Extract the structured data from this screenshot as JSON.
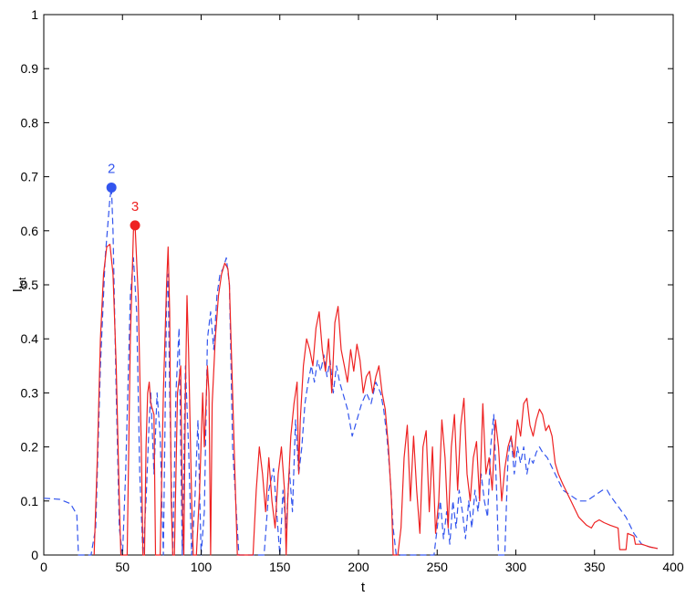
{
  "chart_data": {
    "type": "line",
    "xlabel": "t",
    "ylabel_main": "I",
    "ylabel_sub": "tot",
    "xlim": [
      0,
      400
    ],
    "ylim": [
      0,
      1
    ],
    "x_ticks": [
      0,
      50,
      100,
      150,
      200,
      250,
      300,
      350,
      400
    ],
    "y_ticks": [
      0,
      0.1,
      0.2,
      0.3,
      0.4,
      0.5,
      0.6,
      0.7,
      0.8,
      0.9,
      1
    ],
    "y_tick_labels": [
      "0",
      "0.1",
      "0.2",
      "0.3",
      "0.4",
      "0.5",
      "0.6",
      "0.7",
      "0.8",
      "0.9",
      "1"
    ],
    "grid": false,
    "series": [
      {
        "color": "#3355ee",
        "style": "dashed",
        "points": [
          [
            0,
            0.105
          ],
          [
            10,
            0.103
          ],
          [
            17,
            0.095
          ],
          [
            21,
            0.075
          ],
          [
            22,
            0
          ],
          [
            30,
            0
          ],
          [
            33,
            0.05
          ],
          [
            36,
            0.35
          ],
          [
            39,
            0.55
          ],
          [
            42,
            0.66
          ],
          [
            43,
            0.68
          ],
          [
            44,
            0.6
          ],
          [
            46,
            0.3
          ],
          [
            48,
            0.05
          ],
          [
            50,
            0
          ],
          [
            52,
            0.15
          ],
          [
            55,
            0.48
          ],
          [
            57,
            0.55
          ],
          [
            59,
            0.45
          ],
          [
            61,
            0.15
          ],
          [
            63,
            0
          ],
          [
            65,
            0.1
          ],
          [
            67,
            0.25
          ],
          [
            68,
            0.3
          ],
          [
            70,
            0.15
          ],
          [
            72,
            0.3
          ],
          [
            74,
            0.22
          ],
          [
            76,
            0
          ],
          [
            78,
            0.47
          ],
          [
            79,
            0.52
          ],
          [
            80,
            0.3
          ],
          [
            82,
            0
          ],
          [
            84,
            0.3
          ],
          [
            86,
            0.42
          ],
          [
            88,
            0
          ],
          [
            90,
            0.35
          ],
          [
            92,
            0.2
          ],
          [
            94,
            0
          ],
          [
            96,
            0.1
          ],
          [
            98,
            0.25
          ],
          [
            100,
            0
          ],
          [
            102,
            0.08
          ],
          [
            104,
            0.4
          ],
          [
            106,
            0.45
          ],
          [
            108,
            0.38
          ],
          [
            110,
            0.48
          ],
          [
            112,
            0.52
          ],
          [
            114,
            0.53
          ],
          [
            116,
            0.55
          ],
          [
            118,
            0.5
          ],
          [
            120,
            0.2
          ],
          [
            122,
            0.1
          ],
          [
            124,
            0
          ],
          [
            140,
            0
          ],
          [
            143,
            0.12
          ],
          [
            146,
            0.16
          ],
          [
            148,
            0.08
          ],
          [
            150,
            0
          ],
          [
            152,
            0.12
          ],
          [
            154,
            0.05
          ],
          [
            156,
            0.16
          ],
          [
            158,
            0.08
          ],
          [
            160,
            0.25
          ],
          [
            162,
            0.15
          ],
          [
            164,
            0.2
          ],
          [
            166,
            0.28
          ],
          [
            168,
            0.32
          ],
          [
            170,
            0.35
          ],
          [
            172,
            0.32
          ],
          [
            174,
            0.36
          ],
          [
            176,
            0.34
          ],
          [
            178,
            0.37
          ],
          [
            180,
            0.33
          ],
          [
            182,
            0.36
          ],
          [
            184,
            0.3
          ],
          [
            186,
            0.35
          ],
          [
            188,
            0.32
          ],
          [
            190,
            0.3
          ],
          [
            193,
            0.27
          ],
          [
            196,
            0.22
          ],
          [
            199,
            0.25
          ],
          [
            202,
            0.28
          ],
          [
            205,
            0.3
          ],
          [
            208,
            0.28
          ],
          [
            211,
            0.32
          ],
          [
            214,
            0.3
          ],
          [
            216,
            0.27
          ],
          [
            218,
            0.22
          ],
          [
            220,
            0.15
          ],
          [
            222,
            0.05
          ],
          [
            224,
            0
          ],
          [
            248,
            0
          ],
          [
            250,
            0.05
          ],
          [
            252,
            0.1
          ],
          [
            254,
            0.03
          ],
          [
            256,
            0.08
          ],
          [
            258,
            0.02
          ],
          [
            260,
            0.1
          ],
          [
            262,
            0.05
          ],
          [
            264,
            0.12
          ],
          [
            266,
            0.08
          ],
          [
            268,
            0.03
          ],
          [
            270,
            0.1
          ],
          [
            272,
            0.05
          ],
          [
            274,
            0.12
          ],
          [
            276,
            0.08
          ],
          [
            278,
            0.15
          ],
          [
            280,
            0.1
          ],
          [
            282,
            0.07
          ],
          [
            284,
            0.2
          ],
          [
            286,
            0.26
          ],
          [
            288,
            0.1
          ],
          [
            289,
            0
          ],
          [
            293,
            0
          ],
          [
            295,
            0.18
          ],
          [
            297,
            0.22
          ],
          [
            299,
            0.15
          ],
          [
            301,
            0.2
          ],
          [
            303,
            0.17
          ],
          [
            305,
            0.2
          ],
          [
            307,
            0.15
          ],
          [
            309,
            0.18
          ],
          [
            311,
            0.17
          ],
          [
            313,
            0.19
          ],
          [
            315,
            0.2
          ],
          [
            317,
            0.19
          ],
          [
            320,
            0.18
          ],
          [
            325,
            0.15
          ],
          [
            330,
            0.12
          ],
          [
            335,
            0.11
          ],
          [
            340,
            0.1
          ],
          [
            345,
            0.1
          ],
          [
            350,
            0.11
          ],
          [
            355,
            0.12
          ],
          [
            358,
            0.12
          ],
          [
            360,
            0.11
          ],
          [
            365,
            0.09
          ],
          [
            370,
            0.07
          ],
          [
            375,
            0.04
          ],
          [
            380,
            0.02
          ],
          [
            385,
            0.015
          ],
          [
            390,
            0.012
          ]
        ]
      },
      {
        "color": "#ee2222",
        "style": "solid",
        "points": [
          [
            32,
            0
          ],
          [
            34,
            0.18
          ],
          [
            36,
            0.4
          ],
          [
            38,
            0.52
          ],
          [
            40,
            0.57
          ],
          [
            42,
            0.575
          ],
          [
            44,
            0.52
          ],
          [
            46,
            0.35
          ],
          [
            48,
            0.1
          ],
          [
            49,
            0
          ],
          [
            53,
            0
          ],
          [
            55,
            0.4
          ],
          [
            57,
            0.6
          ],
          [
            58,
            0.61
          ],
          [
            60,
            0.48
          ],
          [
            62,
            0.2
          ],
          [
            63,
            0
          ],
          [
            64,
            0
          ],
          [
            65,
            0.2
          ],
          [
            66,
            0.3
          ],
          [
            67,
            0.32
          ],
          [
            68,
            0.28
          ],
          [
            70,
            0.26
          ],
          [
            71,
            0
          ],
          [
            74,
            0
          ],
          [
            76,
            0.3
          ],
          [
            78,
            0.5
          ],
          [
            79,
            0.57
          ],
          [
            80,
            0.45
          ],
          [
            81,
            0.1
          ],
          [
            82,
            0
          ],
          [
            83,
            0
          ],
          [
            85,
            0.3
          ],
          [
            87,
            0.35
          ],
          [
            88,
            0.1
          ],
          [
            89,
            0
          ],
          [
            90,
            0.3
          ],
          [
            91,
            0.48
          ],
          [
            92,
            0.38
          ],
          [
            94,
            0.1
          ],
          [
            95,
            0
          ],
          [
            97,
            0
          ],
          [
            99,
            0.12
          ],
          [
            101,
            0.3
          ],
          [
            102,
            0.2
          ],
          [
            104,
            0.35
          ],
          [
            105,
            0.3
          ],
          [
            106,
            0
          ],
          [
            107,
            0.28
          ],
          [
            109,
            0.4
          ],
          [
            111,
            0.48
          ],
          [
            113,
            0.52
          ],
          [
            115,
            0.54
          ],
          [
            117,
            0.53
          ],
          [
            118,
            0.5
          ],
          [
            120,
            0.3
          ],
          [
            122,
            0.1
          ],
          [
            123,
            0
          ],
          [
            133,
            0
          ],
          [
            135,
            0.12
          ],
          [
            137,
            0.2
          ],
          [
            139,
            0.15
          ],
          [
            141,
            0.08
          ],
          [
            143,
            0.18
          ],
          [
            145,
            0.1
          ],
          [
            147,
            0.05
          ],
          [
            149,
            0.15
          ],
          [
            151,
            0.2
          ],
          [
            153,
            0.12
          ],
          [
            154,
            0
          ],
          [
            155,
            0.1
          ],
          [
            157,
            0.22
          ],
          [
            159,
            0.28
          ],
          [
            161,
            0.32
          ],
          [
            162,
            0.15
          ],
          [
            163,
            0.25
          ],
          [
            165,
            0.35
          ],
          [
            167,
            0.4
          ],
          [
            169,
            0.38
          ],
          [
            171,
            0.35
          ],
          [
            173,
            0.42
          ],
          [
            175,
            0.45
          ],
          [
            177,
            0.38
          ],
          [
            179,
            0.34
          ],
          [
            181,
            0.4
          ],
          [
            183,
            0.3
          ],
          [
            185,
            0.43
          ],
          [
            187,
            0.46
          ],
          [
            189,
            0.38
          ],
          [
            191,
            0.35
          ],
          [
            193,
            0.32
          ],
          [
            195,
            0.38
          ],
          [
            197,
            0.34
          ],
          [
            199,
            0.39
          ],
          [
            201,
            0.36
          ],
          [
            203,
            0.3
          ],
          [
            205,
            0.33
          ],
          [
            207,
            0.34
          ],
          [
            209,
            0.3
          ],
          [
            211,
            0.33
          ],
          [
            213,
            0.35
          ],
          [
            215,
            0.3
          ],
          [
            217,
            0.27
          ],
          [
            219,
            0.2
          ],
          [
            221,
            0.1
          ],
          [
            222,
            0
          ],
          [
            225,
            0
          ],
          [
            227,
            0.05
          ],
          [
            229,
            0.18
          ],
          [
            231,
            0.24
          ],
          [
            233,
            0.1
          ],
          [
            235,
            0.22
          ],
          [
            237,
            0.12
          ],
          [
            239,
            0.04
          ],
          [
            241,
            0.2
          ],
          [
            243,
            0.23
          ],
          [
            245,
            0.08
          ],
          [
            247,
            0.2
          ],
          [
            249,
            0.04
          ],
          [
            251,
            0.1
          ],
          [
            253,
            0.25
          ],
          [
            255,
            0.18
          ],
          [
            257,
            0.05
          ],
          [
            259,
            0.2
          ],
          [
            261,
            0.26
          ],
          [
            263,
            0.12
          ],
          [
            265,
            0.24
          ],
          [
            267,
            0.29
          ],
          [
            269,
            0.15
          ],
          [
            271,
            0.1
          ],
          [
            273,
            0.18
          ],
          [
            275,
            0.21
          ],
          [
            277,
            0.1
          ],
          [
            279,
            0.28
          ],
          [
            281,
            0.15
          ],
          [
            283,
            0.18
          ],
          [
            285,
            0.12
          ],
          [
            287,
            0.25
          ],
          [
            289,
            0.2
          ],
          [
            291,
            0.1
          ],
          [
            293,
            0.16
          ],
          [
            295,
            0.2
          ],
          [
            297,
            0.22
          ],
          [
            299,
            0.18
          ],
          [
            301,
            0.25
          ],
          [
            303,
            0.22
          ],
          [
            305,
            0.28
          ],
          [
            307,
            0.29
          ],
          [
            309,
            0.24
          ],
          [
            311,
            0.22
          ],
          [
            313,
            0.25
          ],
          [
            315,
            0.27
          ],
          [
            317,
            0.26
          ],
          [
            319,
            0.23
          ],
          [
            321,
            0.24
          ],
          [
            323,
            0.22
          ],
          [
            325,
            0.17
          ],
          [
            327,
            0.15
          ],
          [
            330,
            0.13
          ],
          [
            335,
            0.1
          ],
          [
            340,
            0.07
          ],
          [
            345,
            0.055
          ],
          [
            348,
            0.05
          ],
          [
            350,
            0.06
          ],
          [
            353,
            0.065
          ],
          [
            356,
            0.06
          ],
          [
            360,
            0.055
          ],
          [
            365,
            0.05
          ],
          [
            366,
            0.01
          ],
          [
            370,
            0.01
          ],
          [
            371,
            0.04
          ],
          [
            375,
            0.035
          ],
          [
            376,
            0.02
          ],
          [
            380,
            0.02
          ],
          [
            385,
            0.015
          ],
          [
            390,
            0.012
          ]
        ]
      }
    ],
    "annotations": [
      {
        "label": "2",
        "x": 43,
        "y": 0.68,
        "color": "#3355ee"
      },
      {
        "label": "3",
        "x": 58,
        "y": 0.61,
        "color": "#ee2222"
      }
    ]
  }
}
